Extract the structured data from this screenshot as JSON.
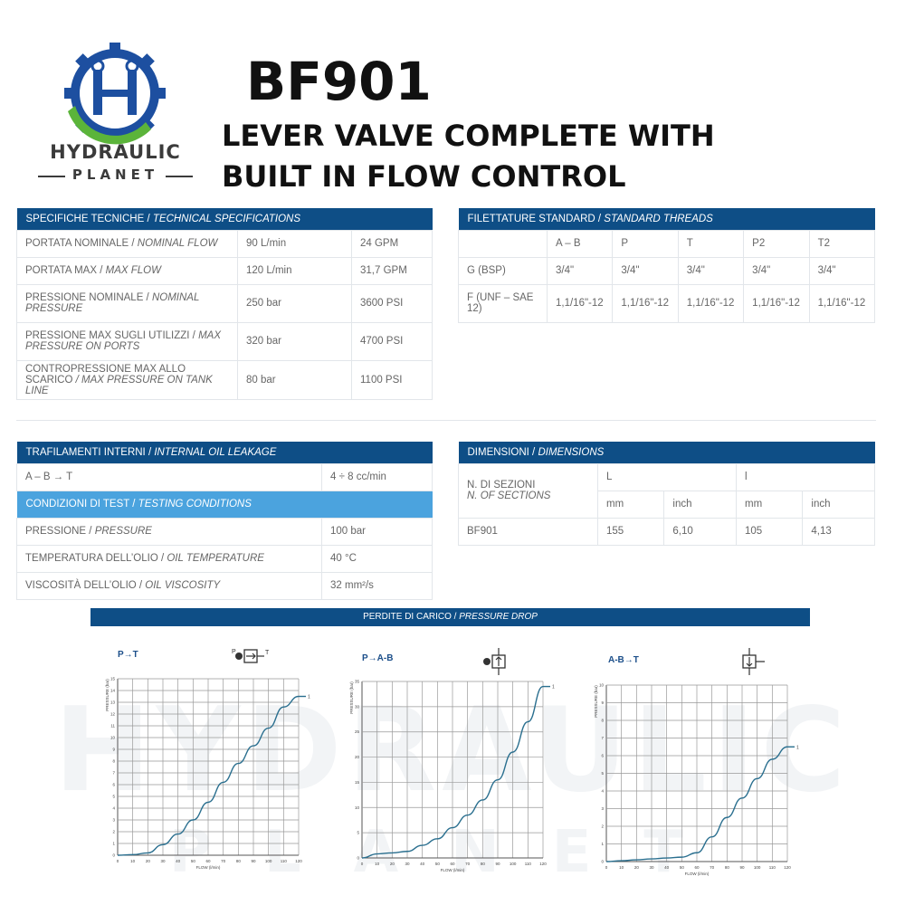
{
  "brand": {
    "name": "HYDRAULIC",
    "sub": "PLANET",
    "watermark_main": "HYDRAULIC",
    "watermark_sub": "PLANET"
  },
  "title": {
    "code": "BF901",
    "description": "LEVER VALVE COMPLETE WITH\nBUILT IN FLOW CONTROL"
  },
  "tech_specs": {
    "header_it": "SPECIFICHE TECNICHE / ",
    "header_en": "TECHNICAL SPECIFICATIONS",
    "rows": [
      {
        "label_it": "PORTATA NOMINALE / ",
        "label_en": "NOMINAL FLOW",
        "metric": "90 L/min",
        "imperial": "24 GPM"
      },
      {
        "label_it": "PORTATA MAX / ",
        "label_en": "MAX FLOW",
        "metric": "120 L/min",
        "imperial": "31,7 GPM"
      },
      {
        "label_it": "PRESSIONE NOMINALE / ",
        "label_en": "NOMINAL PRESSURE",
        "metric": "250 bar",
        "imperial": "3600 PSI"
      },
      {
        "label_it": "PRESSIONE MAX SUGLI UTILIZZI / ",
        "label_en": "MAX PRESSURE ON PORTS",
        "metric": "320 bar",
        "imperial": "4700 PSI"
      },
      {
        "label_it": "CONTROPRESSIONE MAX ALLO SCARICO ",
        "label_en": "/ MAX PRESSURE ON TANK LINE",
        "metric": "80 bar",
        "imperial": "1100 PSI"
      }
    ]
  },
  "threads": {
    "header_it": "FILETTATURE STANDARD / ",
    "header_en": "STANDARD THREADS",
    "columns": [
      "",
      "A – B",
      "P",
      "T",
      "P2",
      "T2"
    ],
    "rows": [
      {
        "label": "G (BSP)",
        "values": [
          "3/4\"",
          "3/4\"",
          "3/4\"",
          "3/4\"",
          "3/4\""
        ]
      },
      {
        "label": "F (UNF – SAE 12)",
        "values": [
          "1,1/16\"-12",
          "1,1/16\"-12",
          "1,1/16\"-12",
          "1,1/16\"-12",
          "1,1/16\"-12"
        ]
      }
    ]
  },
  "leakage": {
    "header_it": "TRAFILAMENTI INTERNI / ",
    "header_en": "INTERNAL OIL LEAKAGE",
    "row": {
      "label": "A – B → T",
      "value": "4 ÷ 8 cc/min"
    },
    "test_header_it": "CONDIZIONI DI TEST / ",
    "test_header_en": "TESTING CONDITIONS",
    "test_rows": [
      {
        "label_it": "PRESSIONE / ",
        "label_en": "PRESSURE",
        "value": "100 bar"
      },
      {
        "label_it": "TEMPERATURA DELL’OLIO / ",
        "label_en": "OIL TEMPERATURE",
        "value": "40 °C"
      },
      {
        "label_it": "VISCOSITÀ DELL’OLIO / ",
        "label_en": "OIL VISCOSITY",
        "value": "32 mm²/s"
      }
    ]
  },
  "dimensions": {
    "header_it": "DIMENSIONI / ",
    "header_en": "DIMENSIONS",
    "sections_it": "N. DI SEZIONI",
    "sections_en": "N. OF SECTIONS",
    "col_L": "L",
    "col_l": "l",
    "units": [
      "mm",
      "inch",
      "mm",
      "inch"
    ],
    "row": {
      "model": "BF901",
      "values": [
        "155",
        "6,10",
        "105",
        "4,13"
      ]
    }
  },
  "pressure_drop": {
    "header_it": "PERDITE DI CARICO / ",
    "header_en": "PRESSURE DROP"
  },
  "chart_data": [
    {
      "type": "line",
      "title": "P→T",
      "xlabel": "FLOW (l/min)",
      "ylabel": "PRESSURE (bar)",
      "xlim": [
        0,
        120
      ],
      "ylim": [
        0,
        15
      ],
      "xticks": [
        0,
        10,
        20,
        30,
        40,
        50,
        60,
        70,
        80,
        90,
        100,
        110,
        120
      ],
      "yticks": [
        0,
        1,
        2,
        3,
        4,
        5,
        6,
        7,
        8,
        9,
        10,
        11,
        12,
        13,
        14,
        15
      ],
      "series": [
        {
          "x": [
            0,
            10,
            20,
            30,
            40,
            50,
            60,
            70,
            80,
            90,
            100,
            110,
            120
          ],
          "y": [
            0,
            0.05,
            0.2,
            0.9,
            1.8,
            3.0,
            4.5,
            6.2,
            7.8,
            9.3,
            10.8,
            12.6,
            13.5
          ],
          "end_label": "1"
        }
      ],
      "line_color": "#2a6f8f"
    },
    {
      "type": "line",
      "title": "P→A-B",
      "xlabel": "FLOW (l/min)",
      "ylabel": "PRESSURE (bar)",
      "xlim": [
        0,
        120
      ],
      "ylim": [
        0,
        35
      ],
      "xticks": [
        0,
        10,
        20,
        30,
        40,
        50,
        60,
        70,
        80,
        90,
        100,
        110,
        120
      ],
      "yticks": [
        0,
        5,
        10,
        15,
        20,
        25,
        30,
        35
      ],
      "series": [
        {
          "x": [
            0,
            10,
            20,
            30,
            40,
            50,
            60,
            70,
            80,
            90,
            100,
            110,
            120
          ],
          "y": [
            0,
            0.8,
            1.0,
            1.3,
            2.5,
            3.8,
            6,
            8.5,
            11.5,
            15.5,
            21,
            27,
            34
          ],
          "end_label": "1"
        }
      ],
      "line_color": "#2a6f8f"
    },
    {
      "type": "line",
      "title": "A-B→T",
      "xlabel": "FLOW (l/min)",
      "ylabel": "PRESSURE (bar)",
      "xlim": [
        0,
        120
      ],
      "ylim": [
        0,
        10
      ],
      "xticks": [
        0,
        10,
        20,
        30,
        40,
        50,
        60,
        70,
        80,
        90,
        100,
        110,
        120
      ],
      "yticks": [
        0,
        1,
        2,
        3,
        4,
        5,
        6,
        7,
        8,
        9,
        10
      ],
      "series": [
        {
          "x": [
            0,
            10,
            20,
            30,
            40,
            50,
            60,
            70,
            80,
            90,
            100,
            110,
            120
          ],
          "y": [
            0,
            0.05,
            0.1,
            0.15,
            0.2,
            0.25,
            0.5,
            1.4,
            2.5,
            3.6,
            4.7,
            5.8,
            6.5
          ],
          "end_label": "1"
        }
      ],
      "line_color": "#2a6f8f"
    }
  ]
}
